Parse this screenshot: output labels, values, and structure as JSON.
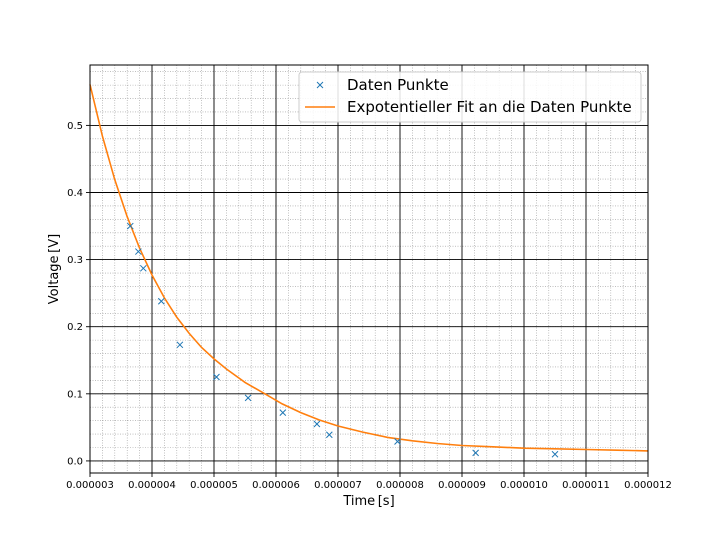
{
  "chart_data": {
    "type": "scatter",
    "xlabel": "Time [s]",
    "ylabel": "Voltage [V]",
    "xlim": [
      3e-06,
      1.2e-05
    ],
    "ylim": [
      -0.018,
      0.59
    ],
    "x_ticks": [
      3e-06,
      4e-06,
      5e-06,
      6e-06,
      7e-06,
      8e-06,
      9e-06,
      1e-05,
      1.1e-05,
      1.2e-05
    ],
    "x_tick_labels": [
      "0.000003",
      "0.000004",
      "0.000005",
      "0.000006",
      "0.000007",
      "0.000008",
      "0.000009",
      "0.000010",
      "0.000011",
      "0.000012"
    ],
    "y_ticks": [
      0.0,
      0.1,
      0.2,
      0.3,
      0.4,
      0.5
    ],
    "y_tick_labels": [
      "0.0",
      "0.1",
      "0.2",
      "0.3",
      "0.4",
      "0.5"
    ],
    "grid": {
      "major": true,
      "minor": true
    },
    "legend_position": "top-right",
    "series": [
      {
        "name": "Daten Punkte",
        "kind": "scatter",
        "marker": "x",
        "color": "#1f77b4",
        "x": [
          3.65e-06,
          3.78e-06,
          3.86e-06,
          4.15e-06,
          4.45e-06,
          5.04e-06,
          5.55e-06,
          6.11e-06,
          6.66e-06,
          6.86e-06,
          7.96e-06,
          9.22e-06,
          1.05e-05
        ],
        "y": [
          0.35,
          0.312,
          0.287,
          0.238,
          0.173,
          0.125,
          0.094,
          0.072,
          0.055,
          0.039,
          0.029,
          0.012,
          0.01
        ]
      },
      {
        "name": "Expotentieller Fit an die Daten Punkte",
        "kind": "line",
        "color": "#ff7f0e",
        "x": [
          3e-06,
          3.2e-06,
          3.4e-06,
          3.6e-06,
          3.8e-06,
          4e-06,
          4.2e-06,
          4.4e-06,
          4.6e-06,
          4.8e-06,
          5e-06,
          5.2e-06,
          5.5e-06,
          5.8e-06,
          6.1e-06,
          6.4e-06,
          6.7e-06,
          7e-06,
          7.4e-06,
          7.8e-06,
          8.2e-06,
          8.6e-06,
          9e-06,
          9.5e-06,
          1e-05,
          1.05e-05,
          1.1e-05,
          1.15e-05,
          1.2e-05
        ],
        "y": [
          0.561,
          0.484,
          0.419,
          0.364,
          0.317,
          0.277,
          0.243,
          0.214,
          0.19,
          0.169,
          0.152,
          0.137,
          0.117,
          0.101,
          0.085,
          0.072,
          0.061,
          0.052,
          0.043,
          0.035,
          0.03,
          0.026,
          0.023,
          0.021,
          0.019,
          0.018,
          0.017,
          0.016,
          0.015
        ]
      }
    ]
  }
}
